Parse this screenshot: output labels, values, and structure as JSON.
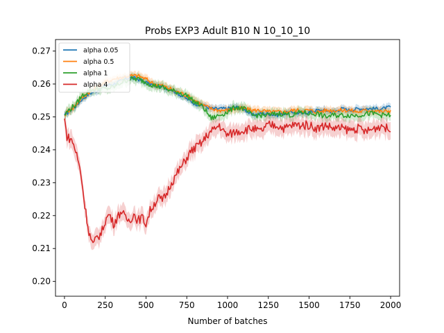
{
  "chart_data": {
    "type": "line",
    "title": "Probs EXP3 Adult B10 N 10_10_10",
    "xlabel": "Number of batches",
    "ylabel": "",
    "xlim": [
      -55,
      2055
    ],
    "ylim": [
      0.1955,
      0.2735
    ],
    "xticks": [
      0,
      250,
      500,
      750,
      1000,
      1250,
      1500,
      1750,
      2000
    ],
    "xtick_labels": [
      "0",
      "250",
      "500",
      "750",
      "1000",
      "1250",
      "1500",
      "1750",
      "2000"
    ],
    "yticks": [
      0.2,
      0.21,
      0.22,
      0.23,
      0.24,
      0.25,
      0.26,
      0.27
    ],
    "ytick_labels": [
      "0.20",
      "0.21",
      "0.22",
      "0.23",
      "0.24",
      "0.25",
      "0.26",
      "0.27"
    ],
    "grid": false,
    "legend_position": "top-left",
    "series": [
      {
        "name": "alpha 0.05",
        "color": "#1f77b4",
        "x": [
          0,
          25,
          50,
          75,
          100,
          150,
          200,
          250,
          300,
          350,
          400,
          450,
          500,
          550,
          600,
          650,
          700,
          750,
          800,
          850,
          900,
          950,
          1000,
          1050,
          1100,
          1150,
          1200,
          1250,
          1300,
          1350,
          1400,
          1450,
          1500,
          1550,
          1600,
          1650,
          1700,
          1750,
          1800,
          1850,
          1900,
          1950,
          2000
        ],
        "values": [
          0.2505,
          0.2515,
          0.2525,
          0.2535,
          0.255,
          0.257,
          0.258,
          0.2595,
          0.26,
          0.261,
          0.262,
          0.2615,
          0.2605,
          0.2595,
          0.259,
          0.2585,
          0.257,
          0.2555,
          0.254,
          0.2535,
          0.2525,
          0.2525,
          0.2525,
          0.253,
          0.2525,
          0.2505,
          0.251,
          0.251,
          0.2505,
          0.251,
          0.2515,
          0.251,
          0.2515,
          0.252,
          0.252,
          0.2515,
          0.2525,
          0.252,
          0.2525,
          0.2525,
          0.2525,
          0.2525,
          0.253
        ],
        "band": 0.0012
      },
      {
        "name": "alpha 0.5",
        "color": "#ff7f0e",
        "x": [
          0,
          25,
          50,
          75,
          100,
          150,
          200,
          250,
          300,
          350,
          400,
          450,
          500,
          550,
          600,
          650,
          700,
          750,
          800,
          850,
          900,
          950,
          1000,
          1050,
          1100,
          1150,
          1200,
          1250,
          1300,
          1350,
          1400,
          1450,
          1500,
          1550,
          1600,
          1650,
          1700,
          1750,
          1800,
          1850,
          1900,
          1950,
          2000
        ],
        "values": [
          0.2505,
          0.252,
          0.2525,
          0.254,
          0.2555,
          0.2575,
          0.259,
          0.2605,
          0.2615,
          0.262,
          0.2625,
          0.2625,
          0.2615,
          0.26,
          0.2595,
          0.2585,
          0.2575,
          0.2565,
          0.255,
          0.2535,
          0.2525,
          0.252,
          0.252,
          0.2525,
          0.2525,
          0.252,
          0.252,
          0.2515,
          0.2515,
          0.2515,
          0.252,
          0.252,
          0.252,
          0.2515,
          0.252,
          0.252,
          0.252,
          0.252,
          0.2515,
          0.252,
          0.252,
          0.2515,
          0.252
        ],
        "band": 0.0014
      },
      {
        "name": "alpha 1",
        "color": "#2ca02c",
        "x": [
          0,
          25,
          50,
          75,
          100,
          150,
          200,
          250,
          300,
          350,
          400,
          450,
          500,
          550,
          600,
          650,
          700,
          750,
          800,
          850,
          900,
          950,
          1000,
          1050,
          1100,
          1150,
          1200,
          1250,
          1300,
          1350,
          1400,
          1450,
          1500,
          1550,
          1600,
          1650,
          1700,
          1750,
          1800,
          1850,
          1900,
          1950,
          2000
        ],
        "values": [
          0.2505,
          0.252,
          0.253,
          0.254,
          0.256,
          0.258,
          0.2585,
          0.2585,
          0.259,
          0.2605,
          0.2615,
          0.2615,
          0.2605,
          0.2595,
          0.259,
          0.258,
          0.2575,
          0.2565,
          0.2545,
          0.253,
          0.2495,
          0.2505,
          0.2515,
          0.253,
          0.2525,
          0.2505,
          0.2505,
          0.2505,
          0.251,
          0.251,
          0.2505,
          0.2515,
          0.251,
          0.251,
          0.25,
          0.2505,
          0.2505,
          0.2505,
          0.2505,
          0.251,
          0.251,
          0.2505,
          0.2505
        ],
        "band": 0.0018
      },
      {
        "name": "alpha 4",
        "color": "#d62728",
        "x": [
          0,
          15,
          30,
          50,
          75,
          100,
          125,
          150,
          175,
          200,
          225,
          250,
          275,
          300,
          325,
          350,
          375,
          400,
          425,
          450,
          475,
          500,
          525,
          550,
          575,
          600,
          625,
          650,
          675,
          700,
          725,
          750,
          775,
          800,
          825,
          850,
          875,
          900,
          925,
          950,
          975,
          1000,
          1050,
          1100,
          1150,
          1200,
          1250,
          1300,
          1350,
          1400,
          1450,
          1500,
          1550,
          1600,
          1650,
          1700,
          1750,
          1800,
          1850,
          1900,
          1950,
          2000
        ],
        "values": [
          0.2495,
          0.244,
          0.2435,
          0.2425,
          0.2385,
          0.233,
          0.223,
          0.215,
          0.211,
          0.2135,
          0.2145,
          0.2185,
          0.2205,
          0.2175,
          0.2195,
          0.2215,
          0.219,
          0.2185,
          0.2205,
          0.2185,
          0.2195,
          0.2175,
          0.2215,
          0.2235,
          0.2255,
          0.2245,
          0.2265,
          0.2295,
          0.2315,
          0.2335,
          0.2355,
          0.2375,
          0.2395,
          0.2405,
          0.2415,
          0.2425,
          0.2445,
          0.2455,
          0.2465,
          0.2475,
          0.2455,
          0.2445,
          0.2455,
          0.246,
          0.2465,
          0.2455,
          0.2475,
          0.2475,
          0.2465,
          0.2475,
          0.2475,
          0.2475,
          0.2465,
          0.2475,
          0.2465,
          0.2465,
          0.246,
          0.2465,
          0.2455,
          0.2465,
          0.2475,
          0.2455
        ],
        "band": 0.003
      }
    ]
  }
}
